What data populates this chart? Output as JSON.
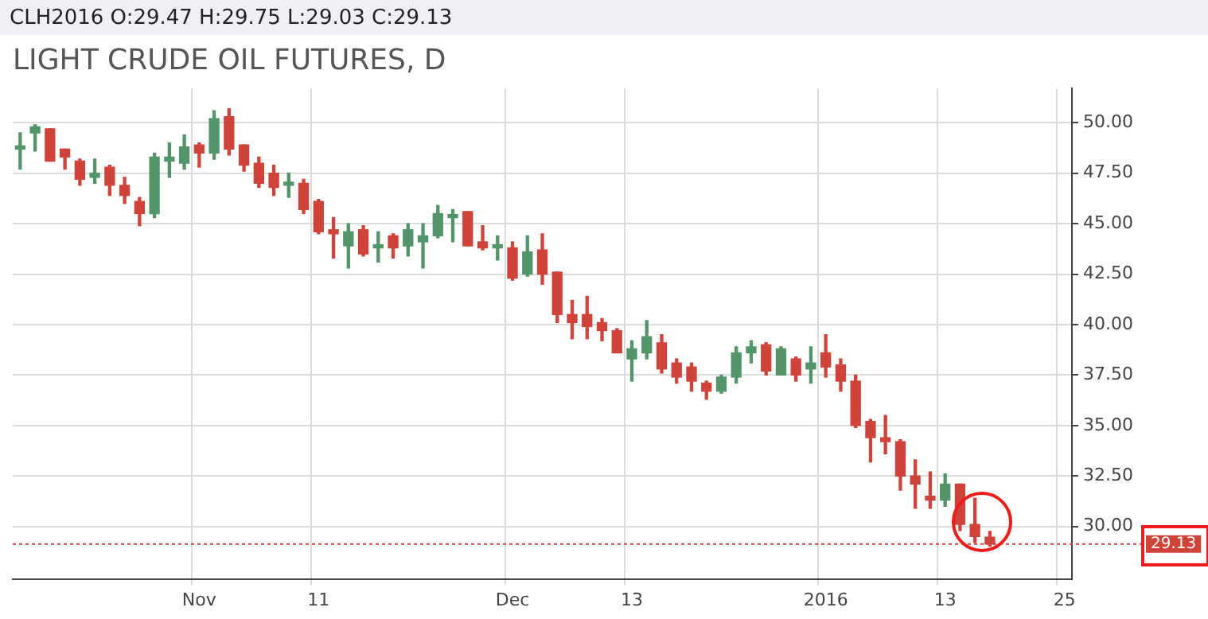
{
  "chart_data": {
    "type": "candlestick",
    "title": "LIGHT CRUDE OIL FUTURES, D",
    "subtitle": "CLH2016 O:29.47 H:29.75 L:29.03 C:29.13",
    "categories": [
      null,
      null,
      null,
      null,
      null,
      null,
      null,
      null,
      null,
      null,
      null,
      null,
      "Nov",
      null,
      null,
      null,
      null,
      null,
      null,
      null,
      "11",
      null,
      null,
      null,
      null,
      null,
      null,
      null,
      null,
      null,
      null,
      null,
      null,
      "Dec",
      null,
      null,
      null,
      null,
      null,
      null,
      null,
      "13",
      null,
      null,
      null,
      null,
      null,
      null,
      null,
      null,
      null,
      null,
      null,
      null,
      "2016",
      null,
      null,
      null,
      null,
      null,
      null,
      null,
      "13",
      null,
      null,
      null,
      null,
      null,
      null,
      null,
      "25"
    ],
    "ohlc": [
      [
        48.7,
        49.5,
        47.7,
        48.8
      ],
      [
        49.5,
        49.9,
        48.6,
        49.8
      ],
      [
        49.7,
        49.7,
        48.1,
        48.1
      ],
      [
        48.7,
        48.7,
        47.7,
        48.3
      ],
      [
        48.1,
        48.2,
        46.9,
        47.2
      ],
      [
        47.3,
        48.2,
        47.0,
        47.5
      ],
      [
        47.8,
        47.9,
        46.4,
        46.9
      ],
      [
        46.9,
        47.3,
        46.0,
        46.4
      ],
      [
        46.1,
        46.3,
        44.9,
        45.5
      ],
      [
        45.5,
        48.5,
        45.3,
        48.3
      ],
      [
        48.1,
        49.0,
        47.3,
        48.3
      ],
      [
        48.0,
        49.4,
        47.7,
        48.8
      ],
      [
        48.9,
        49.0,
        47.8,
        48.5
      ],
      [
        48.5,
        50.6,
        48.2,
        50.2
      ],
      [
        50.3,
        50.7,
        48.4,
        48.7
      ],
      [
        48.9,
        48.9,
        47.6,
        47.9
      ],
      [
        48.0,
        48.3,
        46.8,
        47.0
      ],
      [
        47.5,
        47.9,
        46.4,
        46.8
      ],
      [
        46.9,
        47.5,
        46.3,
        47.0
      ],
      [
        47.0,
        47.2,
        45.5,
        45.7
      ],
      [
        46.1,
        46.2,
        44.5,
        44.6
      ],
      [
        44.7,
        45.3,
        43.3,
        44.5
      ],
      [
        43.9,
        45.0,
        42.8,
        44.6
      ],
      [
        44.7,
        44.9,
        43.4,
        43.5
      ],
      [
        43.8,
        44.6,
        43.1,
        43.9
      ],
      [
        44.4,
        44.5,
        43.3,
        43.8
      ],
      [
        43.9,
        45.0,
        43.4,
        44.7
      ],
      [
        44.1,
        45.0,
        42.8,
        44.4
      ],
      [
        44.4,
        45.9,
        44.3,
        45.5
      ],
      [
        45.3,
        45.7,
        44.1,
        45.4
      ],
      [
        45.6,
        45.6,
        43.9,
        43.9
      ],
      [
        44.1,
        44.9,
        43.7,
        43.8
      ],
      [
        43.8,
        44.4,
        43.2,
        43.9
      ],
      [
        43.8,
        44.1,
        42.2,
        42.3
      ],
      [
        42.5,
        44.4,
        42.4,
        43.6
      ],
      [
        43.7,
        44.5,
        42.0,
        42.5
      ],
      [
        42.6,
        42.6,
        40.1,
        40.5
      ],
      [
        40.5,
        41.2,
        39.3,
        40.1
      ],
      [
        40.5,
        41.4,
        39.3,
        39.9
      ],
      [
        40.1,
        40.3,
        39.2,
        39.7
      ],
      [
        39.7,
        39.8,
        38.6,
        38.6
      ],
      [
        38.3,
        39.2,
        37.2,
        38.8
      ],
      [
        38.6,
        40.2,
        38.3,
        39.4
      ],
      [
        39.1,
        39.5,
        37.6,
        37.8
      ],
      [
        38.1,
        38.3,
        37.1,
        37.4
      ],
      [
        37.9,
        38.1,
        36.7,
        37.2
      ],
      [
        37.1,
        37.2,
        36.3,
        36.7
      ],
      [
        36.7,
        37.5,
        36.6,
        37.4
      ],
      [
        37.4,
        38.9,
        37.1,
        38.6
      ],
      [
        38.6,
        39.2,
        38.1,
        38.9
      ],
      [
        39.0,
        39.1,
        37.5,
        37.7
      ],
      [
        37.5,
        38.9,
        37.5,
        38.8
      ],
      [
        38.3,
        38.4,
        37.2,
        37.5
      ],
      [
        37.8,
        38.9,
        37.1,
        38.1
      ],
      [
        38.6,
        39.5,
        37.4,
        37.9
      ],
      [
        38.0,
        38.3,
        36.7,
        37.2
      ],
      [
        37.2,
        37.5,
        34.9,
        35.0
      ],
      [
        35.2,
        35.3,
        33.2,
        34.4
      ],
      [
        34.4,
        35.5,
        33.6,
        34.2
      ],
      [
        34.2,
        34.3,
        31.8,
        32.5
      ],
      [
        32.5,
        33.3,
        30.9,
        32.1
      ],
      [
        31.5,
        32.7,
        30.9,
        31.3
      ],
      [
        31.3,
        32.6,
        31.0,
        32.1
      ],
      [
        32.1,
        32.1,
        29.8,
        30.1
      ],
      [
        30.1,
        31.4,
        29.2,
        29.5
      ],
      [
        29.47,
        29.75,
        29.03,
        29.13
      ],
      null,
      null,
      null,
      null,
      null
    ],
    "colors": [
      "#53956a",
      "#53956a",
      "#d0433a",
      "#d0433a",
      "#d0433a",
      "#53956a",
      "#d0433a",
      "#d0433a",
      "#d0433a",
      "#53956a",
      "#53956a",
      "#53956a",
      "#d0433a",
      "#53956a",
      "#d0433a",
      "#d0433a",
      "#d0433a",
      "#d0433a",
      "#53956a",
      "#d0433a",
      "#d0433a",
      "#d0433a",
      "#53956a",
      "#d0433a",
      "#53956a",
      "#d0433a",
      "#53956a",
      "#53956a",
      "#53956a",
      "#53956a",
      "#d0433a",
      "#d0433a",
      "#53956a",
      "#d0433a",
      "#53956a",
      "#d0433a",
      "#d0433a",
      "#d0433a",
      "#d0433a",
      "#d0433a",
      "#d0433a",
      "#53956a",
      "#53956a",
      "#d0433a",
      "#d0433a",
      "#d0433a",
      "#d0433a",
      "#53956a",
      "#53956a",
      "#53956a",
      "#d0433a",
      "#53956a",
      "#d0433a",
      "#53956a",
      "#d0433a",
      "#d0433a",
      "#d0433a",
      "#d0433a",
      "#d0433a",
      "#d0433a",
      "#d0433a",
      "#d0433a",
      "#53956a",
      "#d0433a",
      "#d0433a",
      "#d0433a",
      null,
      null,
      null,
      null,
      null
    ],
    "ylim": [
      27.4,
      51.7
    ],
    "yticks": [
      {
        "value": 30,
        "label": "30.00"
      },
      {
        "value": 32.5,
        "label": "32.50"
      },
      {
        "value": 35,
        "label": "35.00"
      },
      {
        "value": 37.5,
        "label": "37.50"
      },
      {
        "value": 40,
        "label": "40.00"
      },
      {
        "value": 42.5,
        "label": "42.50"
      },
      {
        "value": 45,
        "label": "45.00"
      },
      {
        "value": 47.5,
        "label": "47.50"
      },
      {
        "value": 50,
        "label": "50.00"
      }
    ],
    "ref_lines": [
      {
        "axis": "y",
        "value": 29.13,
        "label": "29.13",
        "color": "#d0433a",
        "line_style": "dotted"
      }
    ],
    "grid": true,
    "legend": false
  }
}
